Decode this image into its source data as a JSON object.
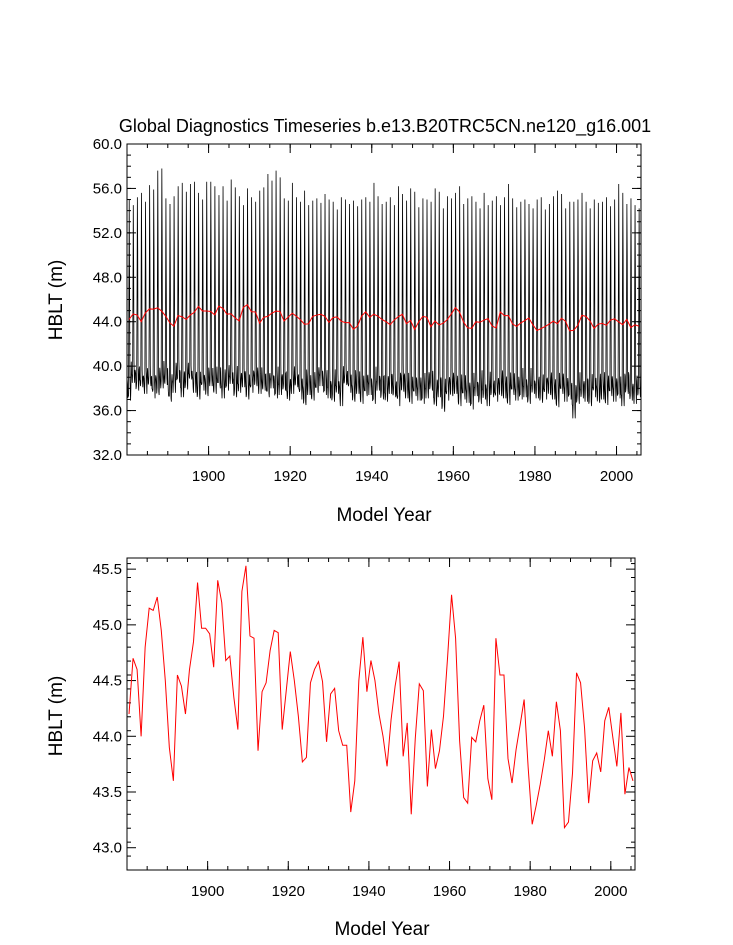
{
  "chart_data": [
    {
      "type": "line",
      "title": "Global Diagnostics Timeseries b.e13.B20TRC5CN.ne120_g16.001",
      "xlabel": "Model Year",
      "ylabel": "HBLT (m)",
      "xlim": [
        1880,
        2006
      ],
      "ylim": [
        32.0,
        60.0
      ],
      "xticks": [
        1900,
        1920,
        1940,
        1960,
        1980,
        2000
      ],
      "xtick_labels": [
        "1900",
        "1920",
        "1940",
        "1960",
        "1980",
        "2000"
      ],
      "yticks": [
        32,
        36,
        40,
        44,
        48,
        52,
        56,
        60
      ],
      "ytick_labels": [
        "32.0",
        "36.0",
        "40.0",
        "44.0",
        "48.0",
        "52.0",
        "56.0",
        "60.0"
      ],
      "monthly_series": {
        "name": "",
        "color": "#000000",
        "years": [
          1880,
          1881,
          1882,
          1883,
          1884,
          1885,
          1886,
          1887,
          1888,
          1889,
          1890,
          1891,
          1892,
          1893,
          1894,
          1895,
          1896,
          1897,
          1898,
          1899,
          1900,
          1901,
          1902,
          1903,
          1904,
          1905,
          1906,
          1907,
          1908,
          1909,
          1910,
          1911,
          1912,
          1913,
          1914,
          1915,
          1916,
          1917,
          1918,
          1919,
          1920,
          1921,
          1922,
          1923,
          1924,
          1925,
          1926,
          1927,
          1928,
          1929,
          1930,
          1931,
          1932,
          1933,
          1934,
          1935,
          1936,
          1937,
          1938,
          1939,
          1940,
          1941,
          1942,
          1943,
          1944,
          1945,
          1946,
          1947,
          1948,
          1949,
          1950,
          1951,
          1952,
          1953,
          1954,
          1955,
          1956,
          1957,
          1958,
          1959,
          1960,
          1961,
          1962,
          1963,
          1964,
          1965,
          1966,
          1967,
          1968,
          1969,
          1970,
          1971,
          1972,
          1973,
          1974,
          1975,
          1976,
          1977,
          1978,
          1979,
          1980,
          1981,
          1982,
          1983,
          1984,
          1985,
          1986,
          1987,
          1988,
          1989,
          1990,
          1991,
          1992,
          1993,
          1994,
          1995,
          1996,
          1997,
          1998,
          1999,
          2000,
          2001,
          2002,
          2003,
          2004,
          2005
        ],
        "annual_max": [
          55.0,
          54.5,
          55.2,
          55.6,
          54.8,
          56.3,
          55.9,
          57.6,
          57.8,
          55.1,
          54.6,
          55.3,
          56.2,
          56.5,
          55.7,
          56.4,
          56.6,
          55.6,
          55.0,
          56.6,
          56.6,
          56.2,
          55.4,
          56.2,
          54.9,
          56.8,
          56.1,
          55.3,
          54.5,
          56.0,
          55.2,
          54.8,
          55.8,
          56.1,
          57.3,
          56.7,
          57.6,
          57.0,
          55.1,
          54.9,
          56.5,
          55.2,
          54.8,
          55.8,
          54.5,
          54.9,
          55.1,
          54.7,
          55.5,
          55.0,
          54.8,
          54.1,
          55.2,
          55.0,
          54.6,
          54.9,
          54.4,
          55.0,
          55.2,
          54.8,
          56.5,
          55.3,
          54.6,
          54.8,
          55.2,
          54.5,
          56.2,
          55.5,
          54.9,
          56.0,
          55.7,
          54.3,
          55.1,
          55.0,
          54.8,
          56.0,
          55.7,
          54.2,
          55.3,
          55.1,
          55.6,
          56.2,
          54.6,
          55.1,
          55.3,
          54.8,
          54.2,
          55.6,
          54.5,
          54.9,
          55.3,
          54.5,
          55.2,
          56.4,
          55.1,
          54.3,
          54.8,
          55.0,
          54.6,
          54.2,
          55.0,
          55.2,
          54.1,
          54.6,
          55.3,
          55.8,
          55.5,
          54.2,
          54.8,
          54.8,
          55.0,
          55.6,
          54.8,
          54.2,
          55.0,
          54.7,
          54.8,
          55.2,
          54.4,
          55.0,
          56.4,
          55.6,
          54.6,
          55.1,
          54.5,
          54.2
        ],
        "annual_min": [
          36.9,
          38.5,
          37.8,
          38.1,
          37.5,
          38.2,
          37.1,
          37.4,
          38.0,
          38.3,
          36.8,
          37.6,
          38.5,
          37.2,
          37.9,
          38.8,
          37.6,
          37.0,
          37.8,
          37.3,
          38.2,
          37.5,
          38.0,
          37.1,
          37.8,
          38.4,
          37.2,
          37.6,
          38.1,
          37.0,
          37.6,
          38.2,
          37.5,
          37.8,
          37.2,
          38.0,
          37.1,
          37.4,
          37.8,
          36.9,
          37.5,
          38.1,
          37.0,
          36.5,
          37.4,
          36.9,
          37.6,
          38.2,
          37.4,
          37.1,
          36.8,
          37.5,
          36.4,
          38.3,
          37.6,
          36.8,
          37.5,
          36.6,
          37.3,
          37.4,
          36.6,
          37.8,
          37.0,
          36.8,
          37.5,
          37.2,
          36.4,
          37.7,
          37.1,
          36.6,
          37.3,
          36.9,
          36.6,
          37.1,
          37.8,
          36.4,
          37.2,
          35.9,
          36.9,
          37.3,
          37.5,
          36.4,
          37.0,
          36.7,
          36.1,
          37.3,
          36.6,
          37.0,
          36.4,
          37.2,
          36.8,
          37.3,
          37.1,
          36.5,
          37.4,
          36.9,
          37.0,
          37.2,
          36.6,
          37.5,
          37.1,
          36.7,
          37.0,
          37.4,
          37.0,
          36.3,
          37.5,
          36.8,
          37.0,
          35.3,
          36.6,
          37.1,
          36.8,
          36.4,
          37.2,
          36.7,
          37.0,
          36.5,
          37.3,
          36.8,
          37.1,
          36.4,
          37.5,
          36.9,
          36.6,
          37.2
        ]
      },
      "annual_series": {
        "name": "",
        "color": "#ff0000",
        "years": [
          1880,
          1881,
          1882,
          1883,
          1884,
          1885,
          1886,
          1887,
          1888,
          1889,
          1890,
          1891,
          1892,
          1893,
          1894,
          1895,
          1896,
          1897,
          1898,
          1899,
          1900,
          1901,
          1902,
          1903,
          1904,
          1905,
          1906,
          1907,
          1908,
          1909,
          1910,
          1911,
          1912,
          1913,
          1914,
          1915,
          1916,
          1917,
          1918,
          1919,
          1920,
          1921,
          1922,
          1923,
          1924,
          1925,
          1926,
          1927,
          1928,
          1929,
          1930,
          1931,
          1932,
          1933,
          1934,
          1935,
          1936,
          1937,
          1938,
          1939,
          1940,
          1941,
          1942,
          1943,
          1944,
          1945,
          1946,
          1947,
          1948,
          1949,
          1950,
          1951,
          1952,
          1953,
          1954,
          1955,
          1956,
          1957,
          1958,
          1959,
          1960,
          1961,
          1962,
          1963,
          1964,
          1965,
          1966,
          1967,
          1968,
          1969,
          1970,
          1971,
          1972,
          1973,
          1974,
          1975,
          1976,
          1977,
          1978,
          1979,
          1980,
          1981,
          1982,
          1983,
          1984,
          1985,
          1986,
          1987,
          1988,
          1989,
          1990,
          1991,
          1992,
          1993,
          1994,
          1995,
          1996,
          1997,
          1998,
          1999,
          2000,
          2001,
          2002,
          2003,
          2004,
          2005
        ],
        "values": [
          44.2,
          44.7,
          44.6,
          44.0,
          44.8,
          45.15,
          45.13,
          45.25,
          44.95,
          44.5,
          43.9,
          43.6,
          44.55,
          44.45,
          44.2,
          44.6,
          44.85,
          45.38,
          44.97,
          44.97,
          44.92,
          44.62,
          45.4,
          45.2,
          44.68,
          44.72,
          44.35,
          44.06,
          45.3,
          45.53,
          44.9,
          44.88,
          43.87,
          44.4,
          44.48,
          44.77,
          44.95,
          44.93,
          44.06,
          44.41,
          44.76,
          44.5,
          44.18,
          43.77,
          43.81,
          44.48,
          44.6,
          44.67,
          44.49,
          43.95,
          44.38,
          44.43,
          44.05,
          43.92,
          43.92,
          43.32,
          43.6,
          44.5,
          44.89,
          44.4,
          44.68,
          44.5,
          44.2,
          44.0,
          43.73,
          44.15,
          44.45,
          44.67,
          43.82,
          44.12,
          43.3,
          43.98,
          44.47,
          44.41,
          43.55,
          44.06,
          43.71,
          43.87,
          44.18,
          44.7,
          45.27,
          44.88,
          43.96,
          43.45,
          43.4,
          43.99,
          43.95,
          44.14,
          44.28,
          43.62,
          43.43,
          44.88,
          44.55,
          44.55,
          43.8,
          43.58,
          43.88,
          44.1,
          44.33,
          43.72,
          43.21,
          43.38,
          43.57,
          43.79,
          44.05,
          43.82,
          44.31,
          44.05,
          43.18,
          43.23,
          43.67,
          44.57,
          44.48,
          44.07,
          43.4,
          43.78,
          43.85,
          43.68,
          44.14,
          44.26,
          43.99,
          43.73,
          44.21,
          43.48,
          43.72,
          43.6
        ]
      }
    },
    {
      "type": "line",
      "title": "",
      "xlabel": "Model Year",
      "ylabel": "HBLT (m)",
      "xlim": [
        1880,
        2006
      ],
      "ylim": [
        42.8,
        45.6
      ],
      "xticks": [
        1900,
        1920,
        1940,
        1960,
        1980,
        2000
      ],
      "xtick_labels": [
        "1900",
        "1920",
        "1940",
        "1960",
        "1980",
        "2000"
      ],
      "yticks": [
        43.0,
        43.5,
        44.0,
        44.5,
        45.0,
        45.5
      ],
      "ytick_labels": [
        "43.0",
        "43.5",
        "44.0",
        "44.5",
        "45.0",
        "45.5"
      ],
      "series": [
        {
          "name": "",
          "color": "#ff0000",
          "ref": "annual"
        }
      ]
    }
  ]
}
